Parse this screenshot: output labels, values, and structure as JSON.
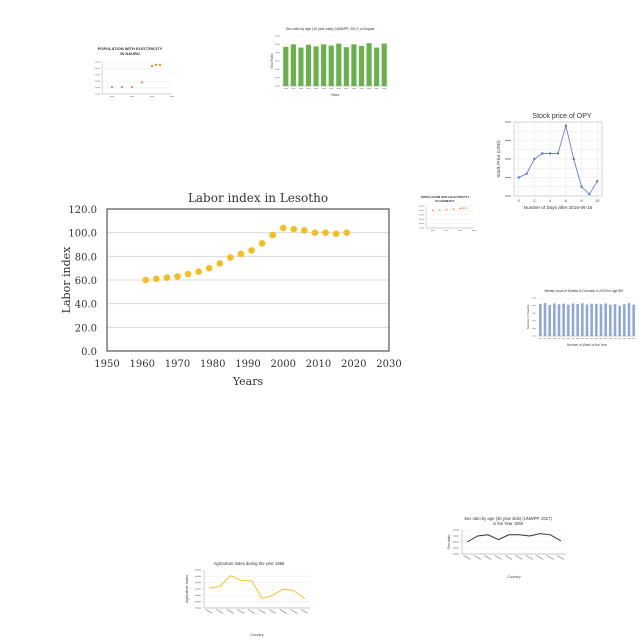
{
  "chart_data": [
    {
      "id": "main",
      "type": "scatter",
      "title": "Labor index in Lesotho",
      "xlabel": "Years",
      "ylabel": "Labor index",
      "xlim": [
        1950,
        2030
      ],
      "ylim": [
        0,
        120
      ],
      "xticks": [
        1950,
        1960,
        1970,
        1980,
        1990,
        2000,
        2010,
        2020,
        2030
      ],
      "yticks": [
        "0.0",
        "20.0",
        "40.0",
        "60.0",
        "80.0",
        "100.0",
        "120.0"
      ],
      "color": "#f5bd1f",
      "grid": true,
      "x": [
        1961,
        1964,
        1967,
        1970,
        1973,
        1976,
        1979,
        1982,
        1985,
        1988,
        1991,
        1994,
        1997,
        2000,
        2003,
        2006,
        2009,
        2012,
        2015,
        2018
      ],
      "y": [
        60,
        61,
        62,
        63,
        65,
        67,
        70,
        74,
        79,
        82,
        85,
        91,
        98,
        104,
        103,
        102,
        100,
        100,
        99,
        100
      ]
    },
    {
      "id": "nauru",
      "type": "scatter",
      "title": "POPULATION WITH ELECTRICITY IN NAURU",
      "color": "#ef7d22",
      "x": [
        1990,
        1995,
        2000,
        2005,
        2010,
        2012,
        2014
      ],
      "y": [
        62,
        62,
        62,
        70,
        98,
        100,
        100
      ]
    },
    {
      "id": "angola",
      "type": "bar",
      "title": "Sex ratio by age (10 year olds) (UNWPP, 2017) in Angola",
      "xlabel": "Years",
      "ylabel": "Sex Ratio",
      "color": "#6ab04c",
      "values": [
        98,
        104,
        96,
        103,
        99,
        104,
        101,
        106,
        97,
        104,
        100,
        107,
        96,
        106
      ]
    },
    {
      "id": "opy",
      "type": "line",
      "title": "Stock price of OPY",
      "xlabel": "Number of Days after 2016-06-15",
      "ylabel": "Stock Price (USD)",
      "color": "#5b6fd6",
      "x": [
        0,
        1,
        2,
        3,
        4,
        5,
        6,
        7,
        8,
        9,
        10
      ],
      "y": [
        24.9,
        25.0,
        25.4,
        25.55,
        25.55,
        25.55,
        26.3,
        25.4,
        24.65,
        24.45,
        24.8
      ],
      "xticks": [
        "0",
        "2",
        "4",
        "6",
        "8",
        "10"
      ],
      "ylim": [
        24.4,
        26.4
      ]
    },
    {
      "id": "germany",
      "type": "scatter",
      "title": "POPULATION WITH ELECTRICITY IN GERMANY",
      "color": "#ef7d22",
      "x": [
        1990,
        1995,
        2000,
        2005,
        2010,
        2012,
        2014
      ],
      "y": [
        94,
        95,
        96,
        97,
        99,
        100,
        100
      ]
    },
    {
      "id": "colorado",
      "type": "bar",
      "title": "Weekly count of Deaths in Colorado in 2019 for age 85+",
      "xlabel": "Number of Week of the Year",
      "ylabel": "Number of Deaths",
      "color": "#8fa8d8",
      "values": [
        148,
        152,
        143,
        150,
        146,
        149,
        144,
        150,
        147,
        151,
        145,
        149,
        148,
        146,
        150,
        144,
        147,
        139,
        146,
        151,
        144
      ]
    },
    {
      "id": "sexratio40",
      "type": "line",
      "title": "Sex ratio by age (40 year olds) (UNWPP, 2017) in the Year 1960",
      "xlabel": "Country",
      "ylabel": "Sex ratio",
      "color": "#333333",
      "values": [
        90,
        95,
        96,
        92,
        96,
        96,
        95,
        97,
        96,
        91
      ]
    },
    {
      "id": "agri",
      "type": "line",
      "title": "Agriculture index during the year 1966",
      "xlabel": "Country",
      "ylabel": "Agriculture index",
      "color": "#f5bd1f",
      "values": [
        82,
        85,
        108,
        98,
        97,
        60,
        67,
        80,
        76,
        60
      ],
      "ylim": [
        40,
        120
      ]
    }
  ]
}
